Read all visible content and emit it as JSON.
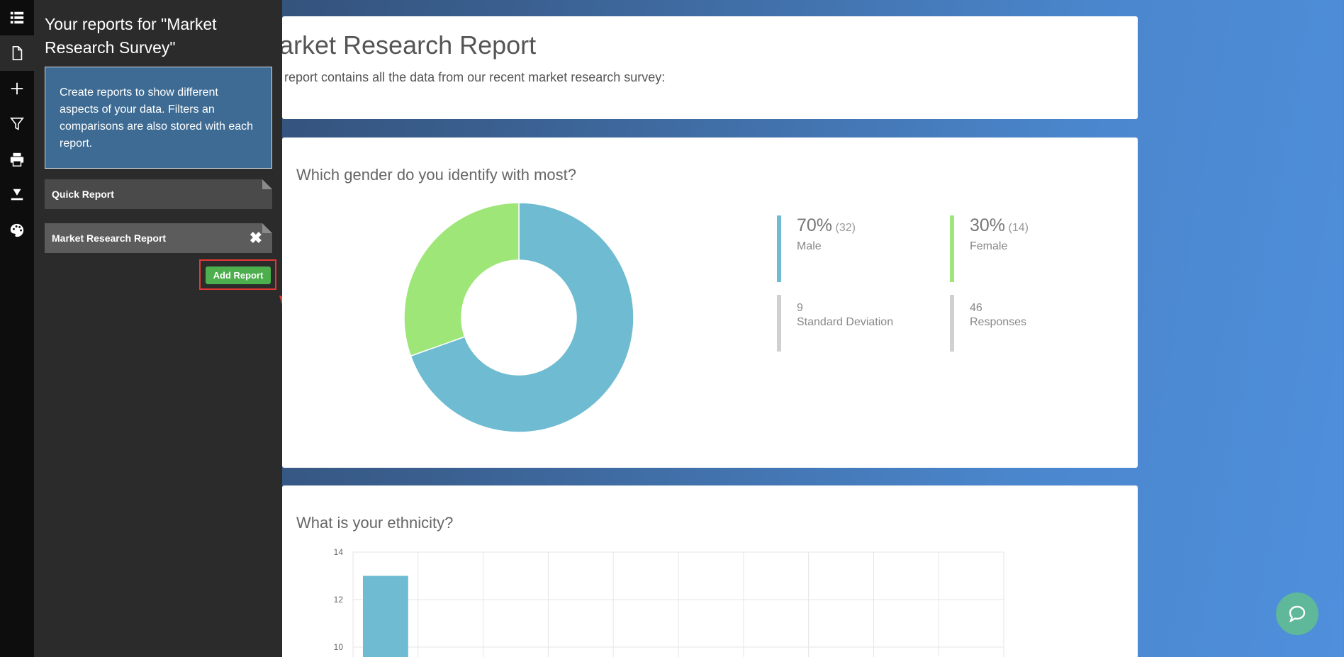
{
  "rail": {
    "icons": [
      "list-icon",
      "document-icon",
      "plus-icon",
      "filter-icon",
      "print-icon",
      "download-icon",
      "palette-icon"
    ]
  },
  "panel": {
    "title": "Your reports for \"Market Research Survey\"",
    "info": "Create reports to show different aspects of your data. Filters an comparisons are also stored with each report.",
    "reports": [
      {
        "label": "Quick Report"
      },
      {
        "label": "Market Research Report"
      }
    ],
    "add_button": "Add Report"
  },
  "header": {
    "title": "Market Research Report",
    "description": "This report contains all the data from our recent market research survey:"
  },
  "gender": {
    "question": "Which gender do you identify with most?",
    "male": {
      "pct": "70%",
      "count": "(32)",
      "label": "Male"
    },
    "female": {
      "pct": "30%",
      "count": "(14)",
      "label": "Female"
    },
    "stddev": {
      "value": "9",
      "label": "Standard Deviation"
    },
    "responses": {
      "value": "46",
      "label": "Responses"
    },
    "colors": {
      "male": "#6fbcd2",
      "female": "#9de677",
      "neutral": "#d0d0d0"
    }
  },
  "ethnicity": {
    "question": "What is your ethnicity?"
  },
  "chart_data": [
    {
      "type": "pie",
      "title": "Which gender do you identify with most?",
      "categories": [
        "Male",
        "Female"
      ],
      "values": [
        32,
        14
      ],
      "colors": [
        "#6fbcd2",
        "#9de677"
      ],
      "donut": true
    },
    {
      "type": "bar",
      "title": "What is your ethnicity?",
      "categories": [
        "",
        "",
        "",
        "",
        "",
        "",
        "",
        "",
        "",
        ""
      ],
      "values": [
        13,
        null,
        null,
        null,
        null,
        null,
        null,
        null,
        null,
        null
      ],
      "yticks": [
        10,
        12,
        14
      ],
      "ylim": [
        10,
        14
      ],
      "grid": true,
      "color": "#6fbcd2"
    }
  ]
}
